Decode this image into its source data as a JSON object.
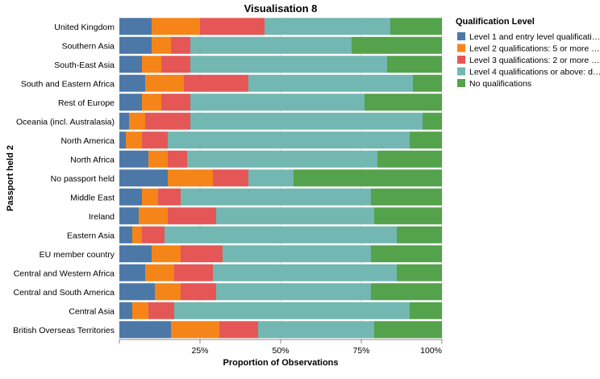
{
  "chart_data": {
    "type": "bar",
    "orientation": "horizontal",
    "stacked": "normalize",
    "title": "Visualisation 8",
    "xlabel": "Proportion of Observations",
    "ylabel": "Passport held 2",
    "xlim": [
      0,
      1
    ],
    "x_ticks": [
      "25%",
      "50%",
      "75%",
      "100%"
    ],
    "grid": true,
    "legend": {
      "title": "Qualification Level",
      "placement": "right",
      "labels": [
        "Level 1 and entry level qualificati…",
        "Level 2 qualifications: 5 or more …",
        "Level 3 qualifications: 2 or more …",
        "Level 4 qualifications or above: d…",
        "No qualifications"
      ]
    },
    "colors": [
      "#4c78a8",
      "#f58518",
      "#e45756",
      "#72b7b2",
      "#54a24b"
    ],
    "categories": [
      "United Kingdom",
      "Southern Asia",
      "South-East Asia",
      "South and Eastern Africa",
      "Rest of Europe",
      "Oceania (incl. Australasia)",
      "North America",
      "North Africa",
      "No passport held",
      "Middle East",
      "Ireland",
      "Eastern Asia",
      "EU member country",
      "Central and Western Africa",
      "Central and South America",
      "Central Asia",
      "British Overseas Territories"
    ],
    "series": [
      {
        "name": "Level 1 and entry level qualificati…",
        "values": [
          0.1,
          0.1,
          0.07,
          0.08,
          0.07,
          0.03,
          0.02,
          0.09,
          0.15,
          0.07,
          0.06,
          0.04,
          0.1,
          0.08,
          0.11,
          0.04,
          0.16
        ]
      },
      {
        "name": "Level 2 qualifications: 5 or more …",
        "values": [
          0.15,
          0.06,
          0.06,
          0.12,
          0.06,
          0.05,
          0.05,
          0.06,
          0.14,
          0.05,
          0.09,
          0.03,
          0.09,
          0.09,
          0.08,
          0.05,
          0.15
        ]
      },
      {
        "name": "Level 3 qualifications: 2 or more …",
        "values": [
          0.2,
          0.06,
          0.09,
          0.2,
          0.09,
          0.14,
          0.08,
          0.06,
          0.11,
          0.07,
          0.15,
          0.07,
          0.13,
          0.12,
          0.11,
          0.08,
          0.12
        ]
      },
      {
        "name": "Level 4 qualifications or above: d…",
        "values": [
          0.39,
          0.5,
          0.61,
          0.51,
          0.54,
          0.72,
          0.75,
          0.59,
          0.14,
          0.59,
          0.49,
          0.72,
          0.46,
          0.57,
          0.48,
          0.73,
          0.36
        ]
      },
      {
        "name": "No qualifications",
        "values": [
          0.16,
          0.28,
          0.17,
          0.09,
          0.24,
          0.06,
          0.1,
          0.2,
          0.46,
          0.22,
          0.21,
          0.14,
          0.22,
          0.14,
          0.22,
          0.1,
          0.21
        ]
      }
    ]
  }
}
